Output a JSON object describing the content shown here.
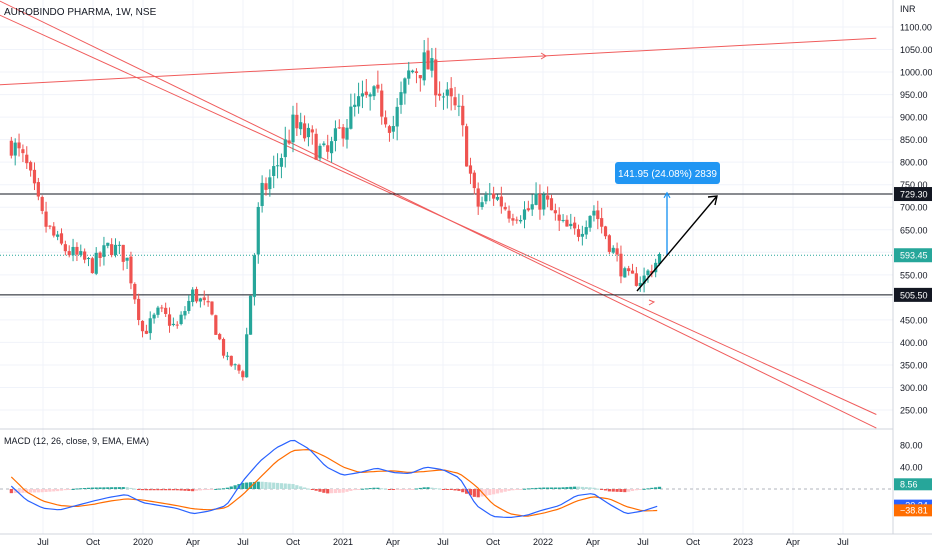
{
  "header": {
    "symbol_label": "AUROBINDO PHARMA, 1W, NSE",
    "currency_label": "INR"
  },
  "indicator": {
    "macd_label": "MACD (12, 26, close, 9, EMA, EMA)"
  },
  "colors": {
    "up": "#26a69a",
    "down": "#ef5350",
    "trendline": "#f05c5c",
    "level_line": "#131722",
    "measure": "#2196f3",
    "macd_line": "#2962ff",
    "signal_line": "#ff6d00",
    "grid": "#f0f3fa"
  },
  "chart_data": [
    {
      "type": "candlestick",
      "title": "AUROBINDO PHARMA, 1W, NSE",
      "y_unit": "INR",
      "ylim": [
        205,
        1160
      ],
      "x_ticks": [
        "Jul",
        "Oct",
        "2020",
        "Apr",
        "Jul",
        "Oct",
        "2021",
        "Apr",
        "Jul",
        "Oct",
        "2022",
        "Apr",
        "Jul",
        "Oct",
        "2023",
        "Apr",
        "Jul"
      ],
      "y_ticks": [
        250,
        300,
        350,
        400,
        450,
        500,
        550,
        600,
        650,
        700,
        750,
        800,
        850,
        900,
        950,
        1000,
        1050,
        1100
      ],
      "price_labels": [
        {
          "value": 729.3,
          "text": "729.30",
          "style": "dark"
        },
        {
          "value": 593.45,
          "text": "593.45",
          "style": "green"
        },
        {
          "value": 505.5,
          "text": "505.50",
          "style": "dark"
        }
      ],
      "horizontal_levels": [
        729.3,
        505.5
      ],
      "last_price": 593.45,
      "measure_label": "141.95 (24.08%) 2839",
      "price_anchors": [
        [
          "2019-05",
          850
        ],
        [
          "2019-06",
          790
        ],
        [
          "2019-07",
          670
        ],
        [
          "2019-08",
          615
        ],
        [
          "2019-09",
          590
        ],
        [
          "2019-10",
          570
        ],
        [
          "2019-11",
          615
        ],
        [
          "2019-12",
          590
        ],
        [
          "2020-01",
          420
        ],
        [
          "2020-02",
          470
        ],
        [
          "2020-03",
          430
        ],
        [
          "2020-04",
          510
        ],
        [
          "2020-05",
          470
        ],
        [
          "2020-06",
          360
        ],
        [
          "2020-07",
          330
        ],
        [
          "2020-08",
          720
        ],
        [
          "2020-09",
          790
        ],
        [
          "2020-10",
          880
        ],
        [
          "2020-11",
          850
        ],
        [
          "2020-12",
          810
        ],
        [
          "2021-01",
          880
        ],
        [
          "2021-02",
          930
        ],
        [
          "2021-03",
          940
        ],
        [
          "2021-04",
          880
        ],
        [
          "2021-05",
          1000
        ],
        [
          "2021-06",
          1020
        ],
        [
          "2021-07",
          950
        ],
        [
          "2021-08",
          900
        ],
        [
          "2021-09",
          700
        ],
        [
          "2021-10",
          730
        ],
        [
          "2021-11",
          690
        ],
        [
          "2021-12",
          690
        ],
        [
          "2022-01",
          720
        ],
        [
          "2022-02",
          660
        ],
        [
          "2022-03",
          640
        ],
        [
          "2022-04",
          700
        ],
        [
          "2022-05",
          620
        ],
        [
          "2022-06",
          540
        ],
        [
          "2022-07",
          540
        ],
        [
          "2022-08",
          590
        ]
      ],
      "trend_lines": [
        {
          "from": [
            "2019-01",
            965
          ],
          "to": [
            "2023-09",
            1075
          ]
        },
        {
          "from": [
            "2019-04",
            1165
          ],
          "to": [
            "2023-09",
            210
          ]
        },
        {
          "from": [
            "2019-03",
            1150
          ],
          "to": [
            "2023-09",
            240
          ]
        }
      ]
    },
    {
      "type": "histogram+line",
      "title": "MACD (12, 26, close, 9, EMA, EMA)",
      "y_ticks": [
        80.0,
        40.0
      ],
      "ylim": [
        -70,
        100
      ],
      "value_labels": [
        {
          "value": 8.56,
          "text": "8.56",
          "style": "green"
        },
        {
          "value": -30.24,
          "text": "−30.24",
          "style": "blue"
        },
        {
          "value": -38.81,
          "text": "−38.81",
          "style": "orange"
        }
      ],
      "macd_anchors": [
        [
          "2019-05",
          8
        ],
        [
          "2019-06",
          -20
        ],
        [
          "2019-07",
          -35
        ],
        [
          "2019-08",
          -38
        ],
        [
          "2019-09",
          -30
        ],
        [
          "2019-10",
          -22
        ],
        [
          "2019-11",
          -15
        ],
        [
          "2019-12",
          -10
        ],
        [
          "2020-01",
          -25
        ],
        [
          "2020-02",
          -30
        ],
        [
          "2020-03",
          -35
        ],
        [
          "2020-04",
          -45
        ],
        [
          "2020-05",
          -40
        ],
        [
          "2020-06",
          -30
        ],
        [
          "2020-07",
          15
        ],
        [
          "2020-08",
          50
        ],
        [
          "2020-09",
          75
        ],
        [
          "2020-10",
          90
        ],
        [
          "2020-11",
          72
        ],
        [
          "2020-12",
          40
        ],
        [
          "2021-01",
          25
        ],
        [
          "2021-02",
          30
        ],
        [
          "2021-03",
          38
        ],
        [
          "2021-04",
          30
        ],
        [
          "2021-05",
          28
        ],
        [
          "2021-06",
          40
        ],
        [
          "2021-07",
          35
        ],
        [
          "2021-08",
          20
        ],
        [
          "2021-09",
          -30
        ],
        [
          "2021-10",
          -50
        ],
        [
          "2021-11",
          -52
        ],
        [
          "2021-12",
          -48
        ],
        [
          "2022-01",
          -38
        ],
        [
          "2022-02",
          -30
        ],
        [
          "2022-03",
          -12
        ],
        [
          "2022-04",
          -8
        ],
        [
          "2022-05",
          -28
        ],
        [
          "2022-06",
          -45
        ],
        [
          "2022-07",
          -40
        ],
        [
          "2022-08",
          -30
        ]
      ],
      "signal_anchors": [
        [
          "2019-05",
          25
        ],
        [
          "2019-06",
          -5
        ],
        [
          "2019-07",
          -22
        ],
        [
          "2019-08",
          -30
        ],
        [
          "2019-09",
          -32
        ],
        [
          "2019-10",
          -28
        ],
        [
          "2019-11",
          -22
        ],
        [
          "2019-12",
          -18
        ],
        [
          "2020-01",
          -20
        ],
        [
          "2020-02",
          -25
        ],
        [
          "2020-03",
          -30
        ],
        [
          "2020-04",
          -36
        ],
        [
          "2020-05",
          -38
        ],
        [
          "2020-06",
          -34
        ],
        [
          "2020-07",
          -10
        ],
        [
          "2020-08",
          20
        ],
        [
          "2020-09",
          50
        ],
        [
          "2020-10",
          70
        ],
        [
          "2020-11",
          72
        ],
        [
          "2020-12",
          58
        ],
        [
          "2021-01",
          40
        ],
        [
          "2021-02",
          30
        ],
        [
          "2021-03",
          32
        ],
        [
          "2021-04",
          33
        ],
        [
          "2021-05",
          30
        ],
        [
          "2021-06",
          32
        ],
        [
          "2021-07",
          35
        ],
        [
          "2021-08",
          28
        ],
        [
          "2021-09",
          5
        ],
        [
          "2021-10",
          -28
        ],
        [
          "2021-11",
          -45
        ],
        [
          "2021-12",
          -50
        ],
        [
          "2022-01",
          -44
        ],
        [
          "2022-02",
          -36
        ],
        [
          "2022-03",
          -22
        ],
        [
          "2022-04",
          -14
        ],
        [
          "2022-05",
          -18
        ],
        [
          "2022-06",
          -32
        ],
        [
          "2022-07",
          -40
        ],
        [
          "2022-08",
          -39
        ]
      ]
    }
  ]
}
